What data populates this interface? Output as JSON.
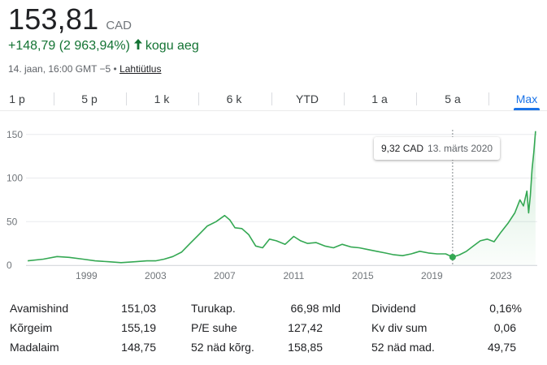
{
  "quote": {
    "price": "153,81",
    "currency": "CAD",
    "change": "+148,79 (2 963,94%)",
    "period": "kogu aeg",
    "timestamp": "14. jaan, 16:00 GMT −5 •",
    "disclaimer": "Lahtiütlus"
  },
  "tabs": [
    {
      "label": "1 p",
      "active": false
    },
    {
      "label": "5 p",
      "active": false
    },
    {
      "label": "1 k",
      "active": false
    },
    {
      "label": "6 k",
      "active": false
    },
    {
      "label": "YTD",
      "active": false
    },
    {
      "label": "1 a",
      "active": false
    },
    {
      "label": "5 a",
      "active": false
    },
    {
      "label": "Max",
      "active": true
    }
  ],
  "tooltip": {
    "value": "9,32 CAD",
    "date": "13. märts 2020"
  },
  "chart_data": {
    "type": "area",
    "color": "#34a853",
    "ylim": [
      0,
      160
    ],
    "yticks": [
      0,
      50,
      100,
      150
    ],
    "ytick_labels": [
      "0",
      "50",
      "100",
      "150"
    ],
    "xlim": [
      1995.5,
      2025.1
    ],
    "xticks": [
      1999,
      2003,
      2007,
      2011,
      2015,
      2019,
      2023
    ],
    "xtick_labels": [
      "1999",
      "2003",
      "2007",
      "2011",
      "2015",
      "2019",
      "2023"
    ],
    "hover_x": 2020.2,
    "hover_y": 9.32,
    "x": [
      1995.6,
      1996.5,
      1997.3,
      1998.0,
      1998.8,
      1999.5,
      2000.3,
      2001.0,
      2001.8,
      2002.5,
      2003.0,
      2003.5,
      2004.0,
      2004.5,
      2005.0,
      2005.5,
      2006.0,
      2006.5,
      2007.0,
      2007.3,
      2007.6,
      2008.0,
      2008.4,
      2008.8,
      2009.2,
      2009.6,
      2010.0,
      2010.5,
      2011.0,
      2011.4,
      2011.8,
      2012.3,
      2012.8,
      2013.3,
      2013.8,
      2014.3,
      2014.8,
      2015.3,
      2015.8,
      2016.3,
      2016.8,
      2017.3,
      2017.8,
      2018.3,
      2018.8,
      2019.3,
      2019.8,
      2020.2,
      2020.6,
      2021.0,
      2021.4,
      2021.8,
      2022.2,
      2022.6,
      2023.0,
      2023.4,
      2023.8,
      2024.1,
      2024.3,
      2024.5,
      2024.6,
      2024.7,
      2024.8,
      2024.9,
      2025.0
    ],
    "values": [
      5,
      7,
      10,
      9,
      7,
      5,
      4,
      3,
      4,
      5,
      5,
      7,
      10,
      15,
      25,
      35,
      45,
      50,
      57,
      52,
      43,
      42,
      35,
      22,
      20,
      30,
      28,
      24,
      33,
      28,
      25,
      26,
      22,
      20,
      24,
      21,
      20,
      18,
      16,
      14,
      12,
      11,
      13,
      16,
      14,
      13,
      13,
      9.32,
      12,
      16,
      22,
      28,
      30,
      27,
      38,
      48,
      60,
      75,
      68,
      85,
      60,
      80,
      110,
      130,
      153.81
    ]
  },
  "stats": [
    {
      "label": "Avamishind",
      "value": "151,03"
    },
    {
      "label": "Turukap.",
      "value": "66,98 mld"
    },
    {
      "label": "Dividend",
      "value": "0,16%"
    },
    {
      "label": "Kõrgeim",
      "value": "155,19"
    },
    {
      "label": "P/E suhe",
      "value": "127,42"
    },
    {
      "label": "Kv div sum",
      "value": "0,06"
    },
    {
      "label": "Madalaim",
      "value": "148,75"
    },
    {
      "label": "52 näd kõrg.",
      "value": "158,85"
    },
    {
      "label": "52 näd mad.",
      "value": "49,75"
    }
  ]
}
